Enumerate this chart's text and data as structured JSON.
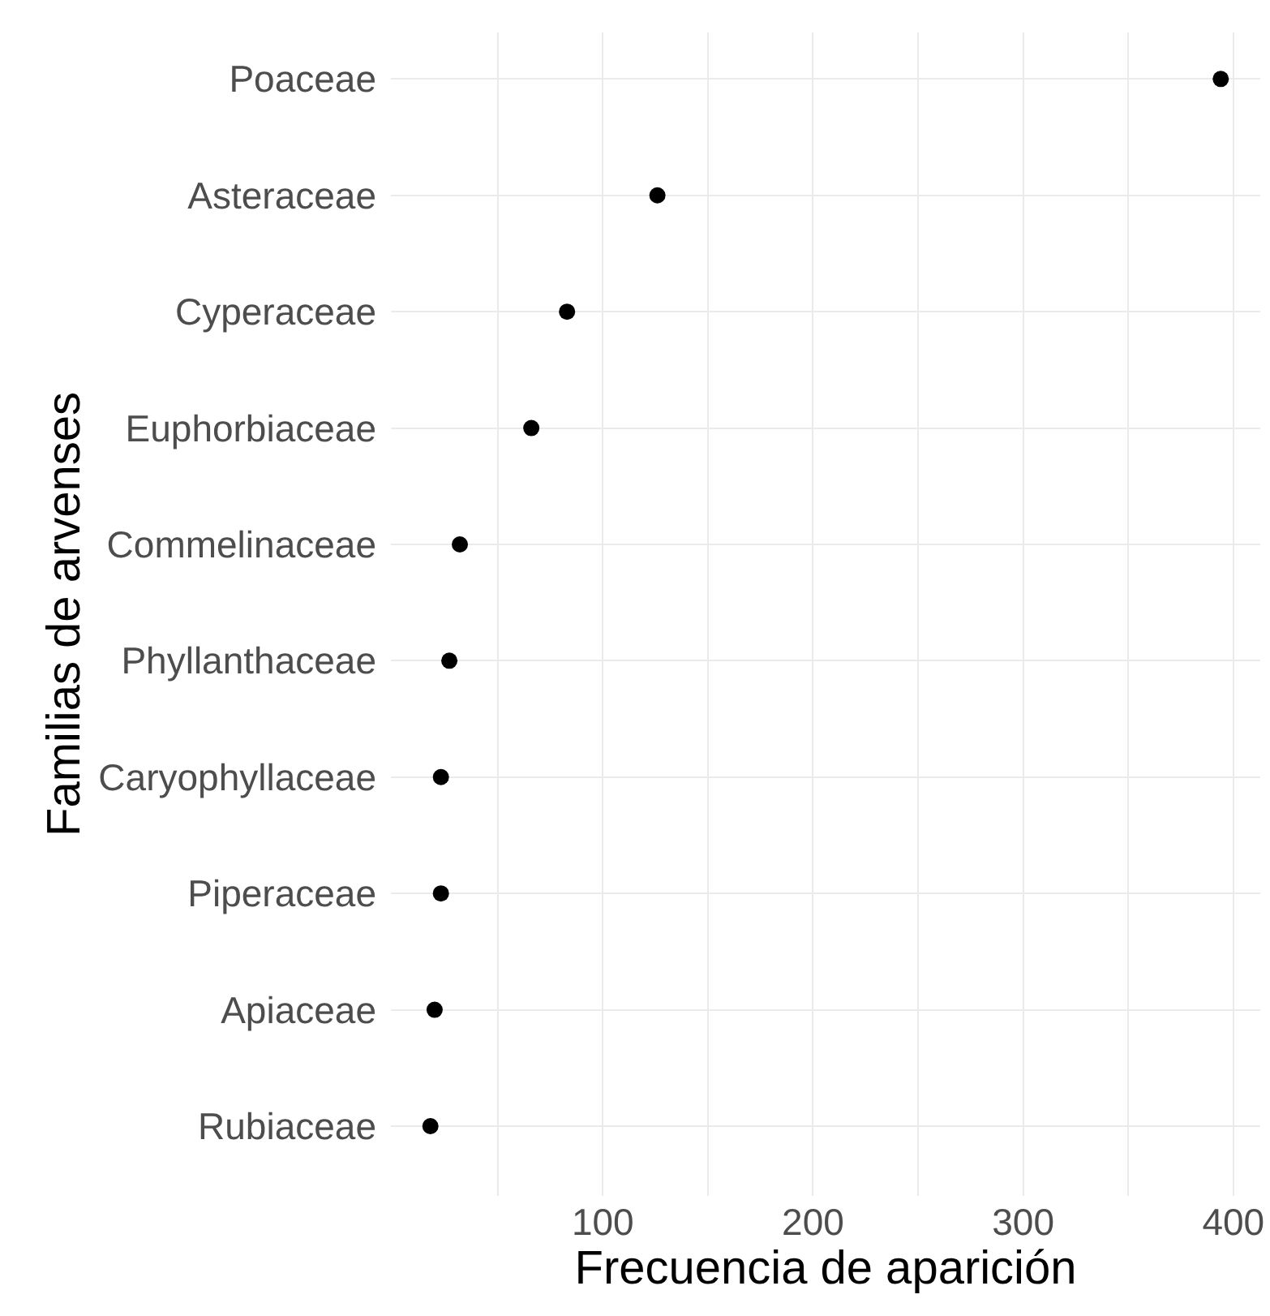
{
  "chart_data": {
    "type": "scatter",
    "orientation": "horizontal",
    "xlabel": "Frecuencia de aparición",
    "ylabel": "Familias de arvenses",
    "categories": [
      "Poaceae",
      "Asteraceae",
      "Cyperaceae",
      "Euphorbiaceae",
      "Commelinaceae",
      "Phyllanthaceae",
      "Caryophyllaceae",
      "Piperaceae",
      "Apiaceae",
      "Rubiaceae"
    ],
    "series": [
      {
        "color": "#000000",
        "values": [
          394,
          126,
          83,
          66,
          32,
          27,
          23,
          23,
          20,
          18
        ]
      }
    ],
    "xlim": [
      -0.8,
      412.8
    ],
    "xticks": [
      {
        "value": 50,
        "label": null
      },
      100,
      {
        "value": 150,
        "label": null
      },
      200,
      {
        "value": 250,
        "label": null
      },
      300,
      {
        "value": 350,
        "label": null
      },
      400
    ],
    "grid": true,
    "marker": "circle"
  }
}
